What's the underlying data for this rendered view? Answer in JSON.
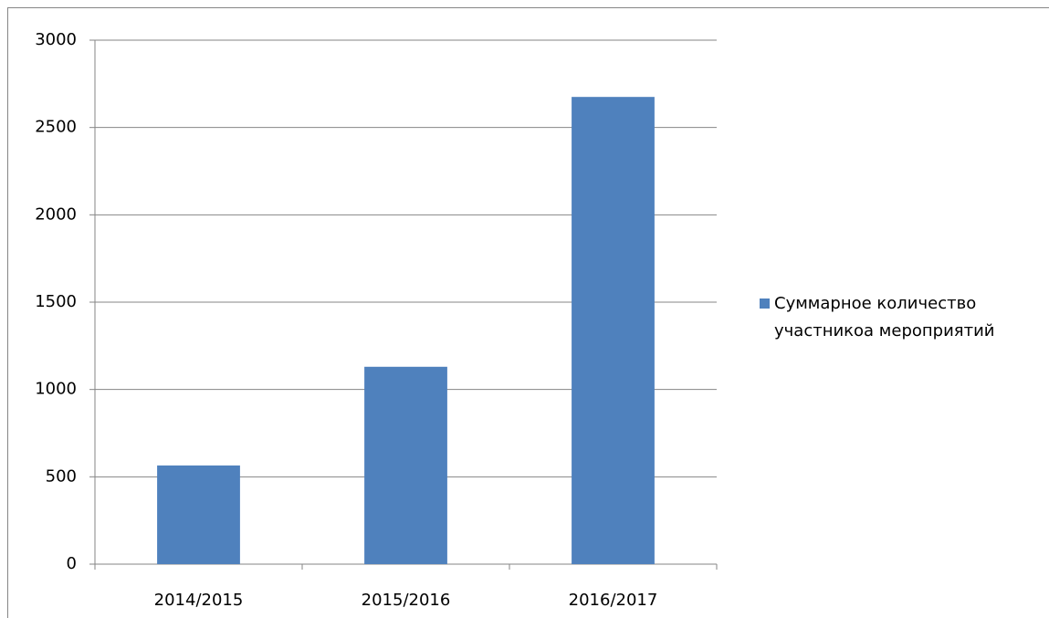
{
  "chart_data": {
    "type": "bar",
    "categories": [
      "2014/2015",
      "2015/2016",
      "2016/2017"
    ],
    "series": [
      {
        "name": "Суммарное количество участникоа мероприятий",
        "color": "#4f81bd",
        "values": [
          565,
          1130,
          2675
        ]
      }
    ],
    "ylim": [
      0,
      3000
    ],
    "yticks": [
      0,
      500,
      1000,
      1500,
      2000,
      2500,
      3000
    ],
    "grid": true,
    "legend": "right"
  }
}
